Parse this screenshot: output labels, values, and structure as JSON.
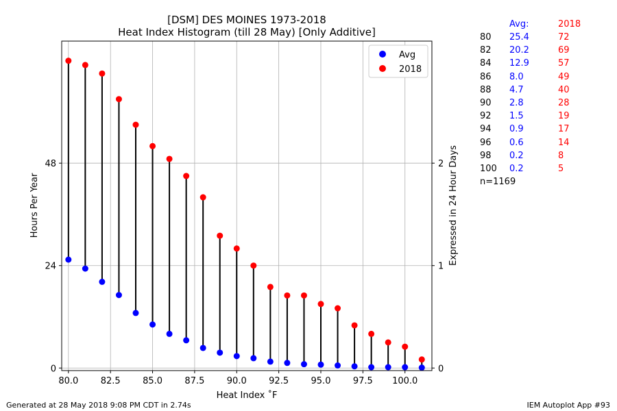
{
  "chart_data": {
    "type": "scatter",
    "title": "[DSM] DES MOINES 1973-2018",
    "subtitle": "Heat Index Histogram (till 28 May) [Only Additive]",
    "xlabel": "Heat Index ˚F",
    "ylabel": "Hours Per Year",
    "ylabel_right": "Expressed in 24 Hour Days",
    "xlim": [
      79.6,
      101.6
    ],
    "ylim": [
      -0.6,
      76.6
    ],
    "x_ticks": [
      "80.0",
      "82.5",
      "85.0",
      "87.5",
      "90.0",
      "92.5",
      "95.0",
      "97.5",
      "100.0"
    ],
    "y_ticks": [
      "0",
      "24",
      "48"
    ],
    "y_ticks_right": [
      "0",
      "1",
      "2"
    ],
    "grid": true,
    "legend_position": "top-right",
    "x": [
      80,
      81,
      82,
      83,
      84,
      85,
      86,
      87,
      88,
      89,
      90,
      91,
      92,
      93,
      94,
      95,
      96,
      97,
      98,
      99,
      100,
      101
    ],
    "series": [
      {
        "name": "Avg",
        "color": "#0000ff",
        "values": [
          25.4,
          23.3,
          20.2,
          17.1,
          12.9,
          10.2,
          8.0,
          6.5,
          4.7,
          3.6,
          2.8,
          2.3,
          1.5,
          1.2,
          0.9,
          0.8,
          0.6,
          0.4,
          0.2,
          0.2,
          0.2,
          0.1
        ]
      },
      {
        "name": "2018",
        "color": "#ff0000",
        "values": [
          72,
          71,
          69,
          63,
          57,
          52,
          49,
          45,
          40,
          31,
          28,
          24,
          19,
          17,
          17,
          15,
          14,
          10,
          8,
          6,
          5,
          2
        ]
      }
    ]
  },
  "table": {
    "header_avg": "Avg:",
    "header_year": "2018",
    "rows": [
      {
        "t": "80",
        "avg": "25.4",
        "yr": "72"
      },
      {
        "t": "82",
        "avg": "20.2",
        "yr": "69"
      },
      {
        "t": "84",
        "avg": "12.9",
        "yr": "57"
      },
      {
        "t": "86",
        "avg": "8.0",
        "yr": "49"
      },
      {
        "t": "88",
        "avg": "4.7",
        "yr": "40"
      },
      {
        "t": "90",
        "avg": "2.8",
        "yr": "28"
      },
      {
        "t": "92",
        "avg": "1.5",
        "yr": "19"
      },
      {
        "t": "94",
        "avg": "0.9",
        "yr": "17"
      },
      {
        "t": "96",
        "avg": "0.6",
        "yr": "14"
      },
      {
        "t": "98",
        "avg": "0.2",
        "yr": "8"
      },
      {
        "t": "100",
        "avg": "0.2",
        "yr": "5"
      }
    ],
    "count": "n=1169"
  },
  "footer": {
    "left": "Generated at 28 May 2018 9:08 PM CDT in 2.74s",
    "right": "IEM Autoplot App #93"
  }
}
